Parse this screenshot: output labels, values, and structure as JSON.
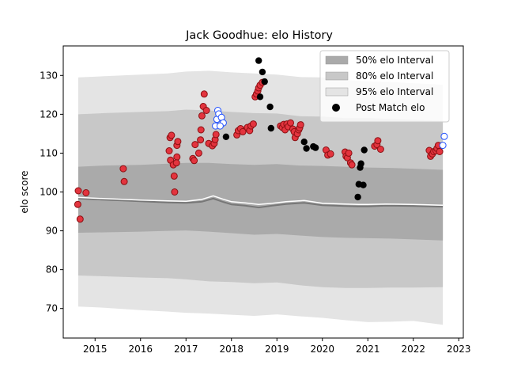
{
  "chart_data": {
    "type": "scatter",
    "title": "Jack Goodhue: elo History",
    "xlabel": "",
    "ylabel": "elo score",
    "xlim": [
      2014.3,
      2023.1
    ],
    "ylim": [
      62.4,
      137.6
    ],
    "x_ticks": [
      2015,
      2016,
      2017,
      2018,
      2019,
      2020,
      2021,
      2022,
      2023
    ],
    "y_ticks": [
      70,
      80,
      90,
      100,
      110,
      120,
      130
    ],
    "legend_position": "top-right",
    "legend": [
      {
        "key": "band50",
        "label": "50% elo Interval"
      },
      {
        "key": "band80",
        "label": "80% elo Interval"
      },
      {
        "key": "band95",
        "label": "95% elo Interval"
      },
      {
        "key": "post",
        "label": "Post Match elo"
      }
    ],
    "colors": {
      "band50": "#aaaaaa",
      "band80": "#c8c8c8",
      "band95": "#e4e4e4",
      "point_fill_red": "#e3343e",
      "point_edge_red": "#8a0f12",
      "point_fill_black": "#000000",
      "point_fill_blue": "#ffffff",
      "point_edge_blue": "#1f4fff",
      "median_line": "#777777",
      "mean_line": "#ffffff"
    },
    "bands": {
      "x": [
        2014.63,
        2015.2,
        2016.0,
        2016.6,
        2017.0,
        2017.5,
        2018.0,
        2018.5,
        2019.0,
        2019.5,
        2020.0,
        2020.5,
        2021.0,
        2021.5,
        2022.0,
        2022.65
      ],
      "p95_hi": [
        129.5,
        129.8,
        130.2,
        130.5,
        131.0,
        131.2,
        130.8,
        130.5,
        130.2,
        129.6,
        129.5,
        128.8,
        128.5,
        128.3,
        128.0,
        127.6
      ],
      "p80_hi": [
        120.0,
        120.3,
        120.6,
        120.8,
        121.2,
        121.0,
        120.6,
        120.3,
        120.2,
        119.5,
        119.4,
        119.0,
        119.0,
        118.8,
        118.6,
        118.3
      ],
      "p50_hi": [
        106.5,
        106.8,
        107.0,
        107.3,
        107.5,
        107.5,
        107.2,
        107.0,
        107.2,
        106.8,
        106.7,
        106.5,
        106.3,
        106.2,
        106.0,
        105.7
      ],
      "p50_lo": [
        89.5,
        89.6,
        89.8,
        90.0,
        90.1,
        89.8,
        89.4,
        89.0,
        89.2,
        88.8,
        88.4,
        88.2,
        88.1,
        88.0,
        87.8,
        87.5
      ],
      "p80_lo": [
        78.5,
        78.3,
        78.0,
        77.8,
        77.5,
        77.0,
        76.8,
        76.5,
        76.7,
        76.0,
        75.5,
        75.3,
        75.3,
        75.4,
        75.4,
        75.5
      ],
      "p95_lo": [
        70.5,
        70.2,
        69.6,
        69.2,
        68.9,
        68.7,
        68.4,
        68.1,
        68.5,
        68.0,
        67.6,
        67.0,
        66.5,
        66.6,
        66.8,
        65.8
      ]
    },
    "median_line": {
      "x": [
        2014.63,
        2015.0,
        2015.6,
        2016.0,
        2016.6,
        2017.0,
        2017.35,
        2017.6,
        2017.8,
        2018.0,
        2018.3,
        2018.6,
        2018.9,
        2019.2,
        2019.6,
        2020.0,
        2020.5,
        2020.8,
        2021.0,
        2021.4,
        2022.0,
        2022.65
      ],
      "y": [
        98.3,
        98.1,
        97.8,
        97.6,
        97.3,
        97.2,
        97.5,
        98.3,
        97.5,
        96.8,
        96.5,
        96.0,
        96.5,
        96.9,
        97.2,
        96.6,
        96.4,
        96.3,
        96.3,
        96.5,
        96.4,
        96.2
      ]
    },
    "mean_line": {
      "x": [
        2014.63,
        2015.0,
        2015.6,
        2016.0,
        2016.6,
        2017.0,
        2017.35,
        2017.6,
        2017.8,
        2018.0,
        2018.3,
        2018.6,
        2018.9,
        2019.2,
        2019.6,
        2020.0,
        2020.5,
        2020.8,
        2021.0,
        2021.4,
        2022.0,
        2022.65
      ],
      "y": [
        98.6,
        98.4,
        98.1,
        97.9,
        97.7,
        97.6,
        98.1,
        99.0,
        98.2,
        97.5,
        97.2,
        96.8,
        97.1,
        97.5,
        97.8,
        97.1,
        96.9,
        96.8,
        96.8,
        96.9,
        96.8,
        96.6
      ]
    },
    "series": [
      {
        "name": "Post Match elo",
        "red": [
          [
            2014.63,
            100.3
          ],
          [
            2014.62,
            96.8
          ],
          [
            2014.67,
            93.0
          ],
          [
            2014.8,
            99.8
          ],
          [
            2015.62,
            106.0
          ],
          [
            2015.64,
            102.7
          ],
          [
            2016.63,
            110.6
          ],
          [
            2016.65,
            114.0
          ],
          [
            2016.68,
            114.6
          ],
          [
            2016.66,
            108.2
          ],
          [
            2016.72,
            107.0
          ],
          [
            2016.74,
            104.1
          ],
          [
            2016.75,
            100.0
          ],
          [
            2016.8,
            109.0
          ],
          [
            2016.79,
            107.5
          ],
          [
            2016.8,
            112.0
          ],
          [
            2016.82,
            113.0
          ],
          [
            2017.15,
            108.6
          ],
          [
            2017.18,
            108.1
          ],
          [
            2017.2,
            112.2
          ],
          [
            2017.28,
            110.0
          ],
          [
            2017.32,
            113.4
          ],
          [
            2017.33,
            116.0
          ],
          [
            2017.35,
            119.6
          ],
          [
            2017.38,
            122.0
          ],
          [
            2017.4,
            125.2
          ],
          [
            2017.45,
            121.0
          ],
          [
            2017.5,
            112.5
          ],
          [
            2017.58,
            111.9
          ],
          [
            2017.62,
            112.5
          ],
          [
            2017.64,
            113.5
          ],
          [
            2017.66,
            114.8
          ],
          [
            2018.12,
            114.7
          ],
          [
            2018.15,
            115.8
          ],
          [
            2018.2,
            116.3
          ],
          [
            2018.25,
            115.5
          ],
          [
            2018.35,
            116.6
          ],
          [
            2018.4,
            115.8
          ],
          [
            2018.43,
            117.0
          ],
          [
            2018.48,
            117.5
          ],
          [
            2018.52,
            124.5
          ],
          [
            2018.55,
            125.2
          ],
          [
            2018.58,
            126.0
          ],
          [
            2018.6,
            126.8
          ],
          [
            2018.63,
            127.5
          ],
          [
            2018.68,
            128.2
          ],
          [
            2019.08,
            117.0
          ],
          [
            2019.12,
            116.6
          ],
          [
            2019.15,
            117.4
          ],
          [
            2019.18,
            116.0
          ],
          [
            2019.22,
            117.5
          ],
          [
            2019.25,
            116.8
          ],
          [
            2019.3,
            117.8
          ],
          [
            2019.35,
            116.2
          ],
          [
            2019.38,
            115.5
          ],
          [
            2019.4,
            114.0
          ],
          [
            2019.45,
            115.0
          ],
          [
            2019.48,
            116.0
          ],
          [
            2019.5,
            116.5
          ],
          [
            2019.52,
            117.3
          ],
          [
            2020.08,
            110.8
          ],
          [
            2020.12,
            109.5
          ],
          [
            2020.18,
            109.8
          ],
          [
            2020.5,
            110.3
          ],
          [
            2020.52,
            109.2
          ],
          [
            2020.55,
            108.8
          ],
          [
            2020.58,
            110.0
          ],
          [
            2020.62,
            107.5
          ],
          [
            2020.65,
            107.0
          ],
          [
            2021.15,
            111.8
          ],
          [
            2021.2,
            112.2
          ],
          [
            2021.22,
            113.2
          ],
          [
            2021.28,
            111.0
          ],
          [
            2022.35,
            110.7
          ],
          [
            2022.38,
            109.2
          ],
          [
            2022.42,
            109.8
          ],
          [
            2022.45,
            110.4
          ],
          [
            2022.5,
            110.6
          ],
          [
            2022.52,
            111.2
          ],
          [
            2022.55,
            112.0
          ],
          [
            2022.58,
            110.4
          ]
        ],
        "black": [
          [
            2017.88,
            114.2
          ],
          [
            2018.6,
            133.8
          ],
          [
            2018.63,
            124.5
          ],
          [
            2018.68,
            130.9
          ],
          [
            2018.73,
            128.4
          ],
          [
            2018.85,
            121.9
          ],
          [
            2018.87,
            116.4
          ],
          [
            2019.6,
            112.9
          ],
          [
            2019.65,
            111.2
          ],
          [
            2019.8,
            111.7
          ],
          [
            2019.85,
            111.4
          ],
          [
            2020.78,
            98.7
          ],
          [
            2020.8,
            102.0
          ],
          [
            2020.83,
            106.3
          ],
          [
            2020.85,
            107.3
          ],
          [
            2020.9,
            101.8
          ],
          [
            2020.92,
            110.8
          ]
        ],
        "blue": [
          [
            2017.65,
            117.0
          ],
          [
            2017.68,
            118.7
          ],
          [
            2017.7,
            121.0
          ],
          [
            2017.72,
            120.1
          ],
          [
            2017.78,
            119.2
          ],
          [
            2017.82,
            117.8
          ],
          [
            2017.75,
            117.0
          ],
          [
            2022.65,
            112.0
          ],
          [
            2022.68,
            114.3
          ]
        ]
      }
    ]
  }
}
